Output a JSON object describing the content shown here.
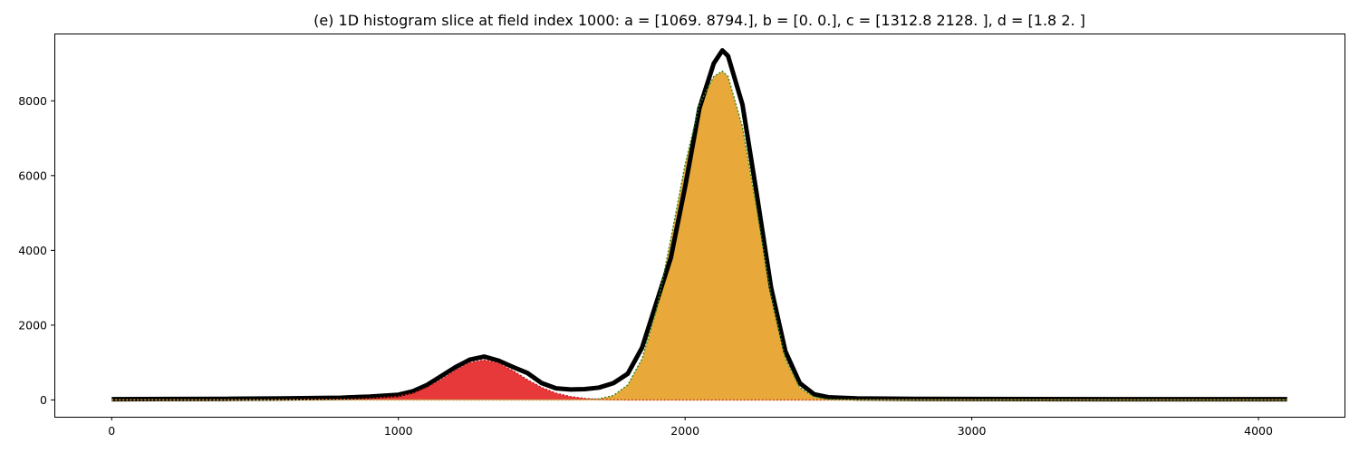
{
  "chart_data": {
    "type": "area",
    "title": "(e) 1D histogram slice at field index 1000: a = [1069. 8794.], b = [0. 0.], c = [1312.8 2128. ], d = [1.8 2. ]",
    "xlabel": "",
    "ylabel": "",
    "xlim": [
      -200,
      4300
    ],
    "ylim": [
      -450,
      9800
    ],
    "xticks": [
      0,
      1000,
      2000,
      3000,
      4000
    ],
    "yticks": [
      0,
      2000,
      4000,
      6000,
      8000
    ],
    "grid": false,
    "legend": "none",
    "x": [
      0,
      200,
      400,
      600,
      800,
      900,
      1000,
      1050,
      1100,
      1150,
      1200,
      1250,
      1300,
      1350,
      1400,
      1450,
      1500,
      1550,
      1600,
      1650,
      1700,
      1750,
      1800,
      1850,
      1900,
      1950,
      2000,
      2050,
      2100,
      2130,
      2150,
      2200,
      2250,
      2300,
      2350,
      2400,
      2450,
      2500,
      2600,
      2800,
      3000,
      3500,
      4100
    ],
    "series": [
      {
        "color": "#e8393a",
        "values": [
          0,
          0,
          0,
          5,
          20,
          40,
          100,
          180,
          330,
          550,
          800,
          1000,
          1069,
          980,
          780,
          540,
          330,
          180,
          90,
          40,
          15,
          5,
          0,
          0,
          0,
          0,
          0,
          0,
          0,
          0,
          0,
          0,
          0,
          0,
          0,
          0,
          0,
          0,
          0,
          0,
          0,
          0,
          0
        ]
      },
      {
        "color": "#e8a93a",
        "values": [
          0,
          0,
          0,
          0,
          0,
          0,
          0,
          0,
          0,
          0,
          0,
          0,
          0,
          0,
          0,
          0,
          0,
          0,
          0,
          5,
          30,
          120,
          400,
          1100,
          2400,
          4300,
          6300,
          7900,
          8650,
          8794,
          8650,
          7300,
          5100,
          2800,
          1100,
          330,
          80,
          15,
          0,
          0,
          0,
          0,
          0
        ]
      },
      {
        "color": "#000000",
        "values": [
          20,
          25,
          30,
          40,
          60,
          90,
          140,
          230,
          400,
          640,
          880,
          1080,
          1160,
          1050,
          880,
          720,
          450,
          310,
          280,
          290,
          330,
          450,
          700,
          1400,
          2600,
          3800,
          5700,
          7800,
          9000,
          9350,
          9200,
          7900,
          5500,
          3000,
          1300,
          450,
          150,
          70,
          40,
          30,
          25,
          20,
          20
        ]
      }
    ]
  }
}
